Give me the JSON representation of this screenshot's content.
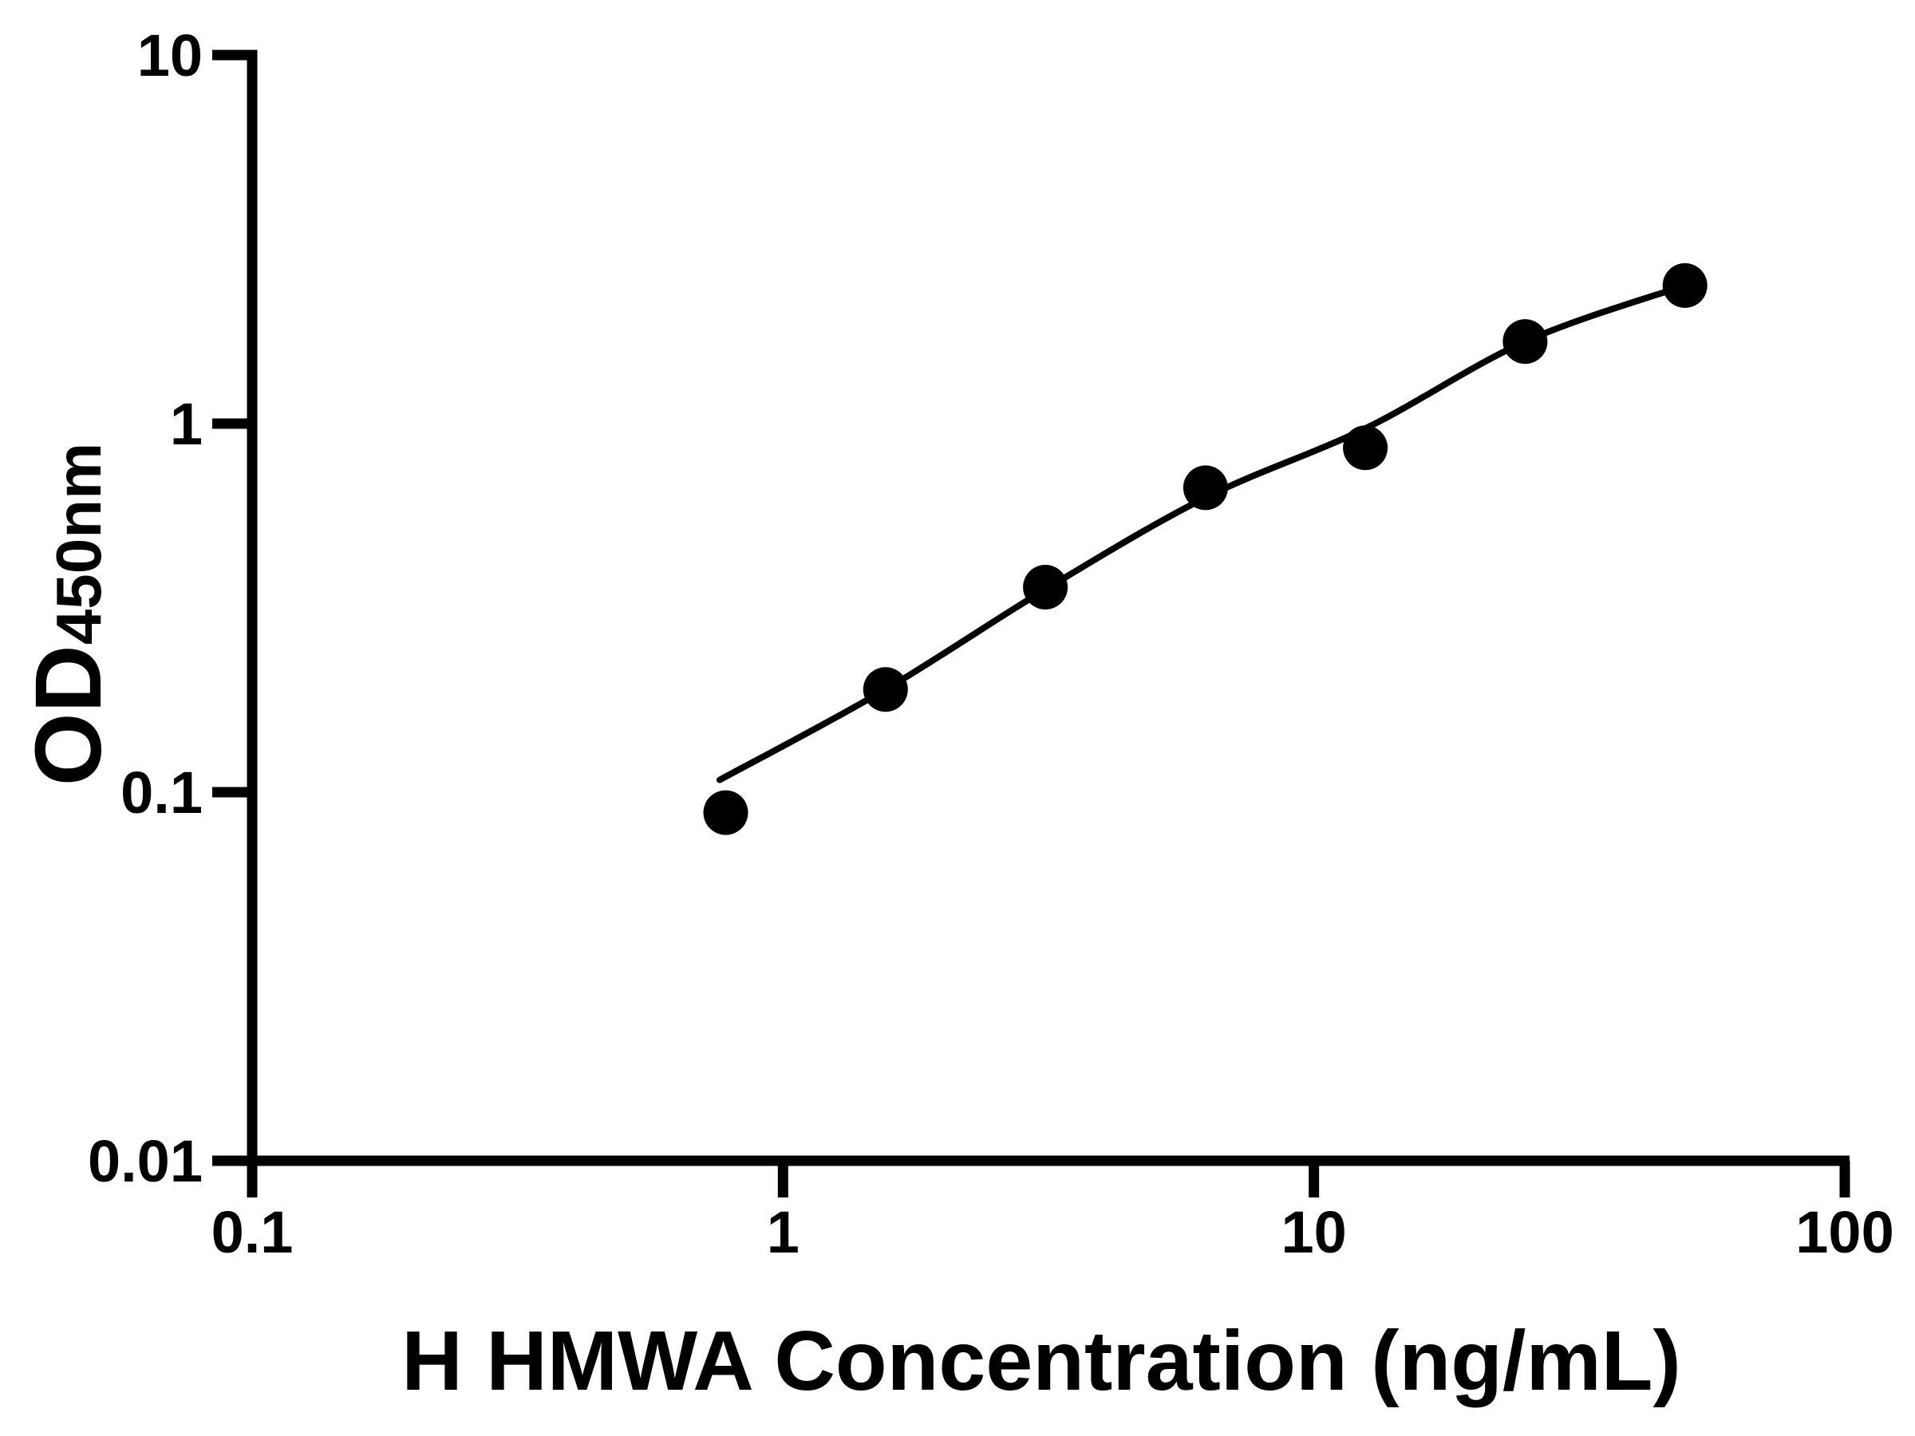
{
  "figure": {
    "background_color": "#ffffff",
    "ink_color": "#000000"
  },
  "chart_data": {
    "type": "scatter",
    "title": "",
    "xlabel": "H HMWA Concentration (ng/mL)",
    "ylabel": "OD450nm",
    "ylabel_main": "OD",
    "ylabel_sub": "450nm",
    "x_scale": "log10",
    "y_scale": "log10",
    "xlim": [
      0.1,
      100
    ],
    "ylim": [
      0.01,
      10
    ],
    "x_ticks": [
      {
        "value": 0.1,
        "label": "0.1"
      },
      {
        "value": 1,
        "label": "1"
      },
      {
        "value": 10,
        "label": "10"
      },
      {
        "value": 100,
        "label": "100"
      }
    ],
    "y_ticks": [
      {
        "value": 0.01,
        "label": "0.01"
      },
      {
        "value": 0.1,
        "label": "0.1"
      },
      {
        "value": 1,
        "label": "1"
      },
      {
        "value": 10,
        "label": "10"
      }
    ],
    "grid": false,
    "legend": "none",
    "series": [
      {
        "name": "standard_points",
        "type": "scatter",
        "marker": "filled-circle",
        "color": "#000000",
        "x": [
          0.78,
          1.56,
          3.12,
          6.25,
          12.5,
          25,
          50
        ],
        "y": [
          0.088,
          0.19,
          0.36,
          0.67,
          0.86,
          1.67,
          2.37
        ]
      },
      {
        "name": "fit_curve",
        "type": "line",
        "color": "#000000",
        "x": [
          0.76,
          1.56,
          3.12,
          6.25,
          12.5,
          25,
          50
        ],
        "y": [
          0.108,
          0.19,
          0.355,
          0.63,
          0.97,
          1.67,
          2.37
        ]
      }
    ]
  }
}
